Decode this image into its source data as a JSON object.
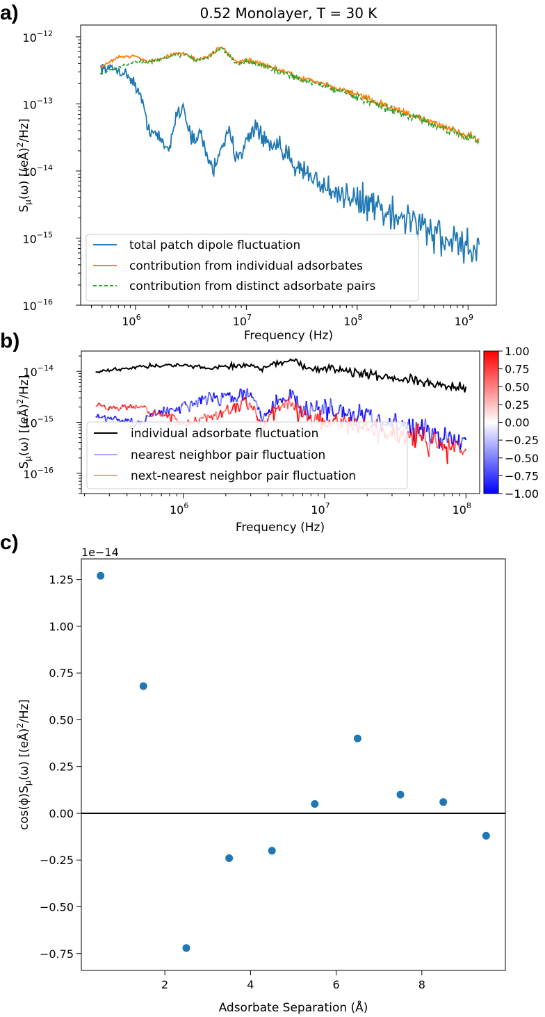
{
  "chart_data": [
    {
      "panel": "a)",
      "type": "line",
      "title": "0.52 Monolayer, T = 30 K",
      "xlabel": "Frequency (Hz)",
      "ylabel": "S_μ(ω) [(eÅ)²/Hz]",
      "xscale": "log",
      "yscale": "log",
      "xlim": [
        320000.0,
        1800000000.0
      ],
      "ylim": [
        1e-16,
        1.5e-12
      ],
      "xticks": [
        {
          "exp": "6"
        },
        {
          "exp": "7"
        },
        {
          "exp": "8"
        },
        {
          "exp": "9"
        }
      ],
      "yticks": [
        {
          "exp": "-16"
        },
        {
          "exp": "-15"
        },
        {
          "exp": "-14"
        },
        {
          "exp": "-13"
        },
        {
          "exp": "-12"
        }
      ],
      "legend_loc": "lower-left",
      "series": [
        {
          "name": "total patch dipole fluctuation",
          "color": "#1f77b4",
          "style": "solid",
          "noise": 0.55,
          "x": [
            480000.0,
            700000.0,
            900000.0,
            1100000.0,
            1300000.0,
            1600000.0,
            2000000.0,
            2300000.0,
            2700000.0,
            3000000.0,
            3400000.0,
            3800000.0,
            4300000.0,
            5000000.0,
            6000000.0,
            7000000.0,
            8000000.0,
            10000000.0,
            12000000.0,
            15000000.0,
            20000000.0,
            30000000.0,
            50000000.0,
            100000000.0,
            200000000.0,
            400000000.0,
            700000000.0,
            1260000000.0
          ],
          "y": [
            3.5e-13,
            3.2e-13,
            2.5e-13,
            1.4e-13,
            4.5e-14,
            3.2e-14,
            2e-14,
            6.5e-14,
            9.5e-14,
            4.5e-14,
            2.5e-14,
            3.8e-14,
            2e-14,
            1e-14,
            2.5e-14,
            3.5e-14,
            1.8e-14,
            2.5e-14,
            5e-14,
            2.5e-14,
            2e-14,
            1.2e-14,
            7e-15,
            4e-15,
            2.5e-15,
            1.5e-15,
            1e-15,
            8e-16
          ]
        },
        {
          "name": "contribution from individual adsorbates",
          "color": "#ff7f0e",
          "style": "solid",
          "noise": 0.12,
          "x": [
            480000.0,
            700000.0,
            1000000.0,
            1300000.0,
            1600000.0,
            2200000.0,
            2800000.0,
            3500000.0,
            4500000.0,
            6000000.0,
            8000000.0,
            10000000.0,
            15000000.0,
            20000000.0,
            30000000.0,
            50000000.0,
            100000000.0,
            200000000.0,
            400000000.0,
            700000000.0,
            1260000000.0
          ],
          "y": [
            3.5e-13,
            5e-13,
            5.2e-13,
            4.2e-13,
            4.6e-13,
            5.5e-13,
            5.6e-13,
            4.6e-13,
            5e-13,
            7.2e-13,
            4.2e-13,
            4.5e-13,
            3.8e-13,
            3.2e-13,
            2.5e-13,
            2e-13,
            1.4e-13,
            9e-14,
            6e-14,
            4.3e-14,
            3e-14
          ]
        },
        {
          "name": "contribution from distinct adsorbate pairs",
          "color": "#2ca02c",
          "style": "dashed",
          "noise": 0.12,
          "x": [
            480000.0,
            700000.0,
            1000000.0,
            1300000.0,
            1600000.0,
            2200000.0,
            2800000.0,
            3500000.0,
            4500000.0,
            6000000.0,
            8000000.0,
            10000000.0,
            15000000.0,
            20000000.0,
            30000000.0,
            50000000.0,
            100000000.0,
            200000000.0,
            400000000.0,
            700000000.0,
            1260000000.0
          ],
          "y": [
            2.8e-13,
            3.5e-13,
            4.3e-13,
            4.2e-13,
            4.5e-13,
            5.3e-13,
            5.4e-13,
            4.5e-13,
            4.9e-13,
            7e-13,
            4e-13,
            4.3e-13,
            3.6e-13,
            3e-13,
            2.4e-13,
            1.9e-13,
            1.3e-13,
            8.5e-14,
            5.7e-14,
            4e-14,
            2.8e-14
          ]
        }
      ]
    },
    {
      "panel": "b)",
      "type": "line",
      "title": "",
      "xlabel": "Frequency (Hz)",
      "ylabel": "S_μ(ω) [(eÅ)²/Hz]",
      "xscale": "log",
      "yscale": "log",
      "xlim": [
        190000.0,
        125000000.0
      ],
      "ylim": [
        4e-17,
        2.5e-14
      ],
      "xticks": [
        {
          "exp": "6"
        },
        {
          "exp": "7"
        },
        {
          "exp": "8"
        }
      ],
      "yticks": [
        {
          "exp": "-16"
        },
        {
          "exp": "-15"
        },
        {
          "exp": "-14"
        }
      ],
      "legend_loc": "lower-left",
      "colorbar": {
        "cmap": "bwr",
        "min": -1.0,
        "max": 1.0,
        "ticks": [
          "1.00",
          "0.75",
          "0.50",
          "0.25",
          "0.00",
          "−0.25",
          "−0.50",
          "−0.75",
          "−1.00"
        ]
      },
      "series": [
        {
          "name": "individual adsorbate fluctuation",
          "color": "#000000",
          "style": "solid",
          "noise": 0.2,
          "x": [
            240000.0,
            500000.0,
            800000.0,
            1000000.0,
            1300000.0,
            1600000.0,
            2000000.0,
            2500000.0,
            3000000.0,
            3500000.0,
            4500000.0,
            6000000.0,
            7000000.0,
            10000000.0,
            15000000.0,
            20000000.0,
            30000000.0,
            50000000.0,
            70000000.0,
            100000000.0
          ],
          "y": [
            9.8e-15,
            1.25e-14,
            1.32e-14,
            1.3e-14,
            1.2e-14,
            1.15e-14,
            1.3e-14,
            1.25e-14,
            1.35e-14,
            1.15e-14,
            1.4e-14,
            1.75e-14,
            1.2e-14,
            1.15e-14,
            1.1e-14,
            9e-15,
            8e-15,
            6.5e-15,
            5.5e-15,
            5e-15
          ]
        },
        {
          "name": "nearest neighbor pair fluctuation",
          "color": "#0000ff",
          "style": "solid",
          "noise": 0.5,
          "x": [
            240000.0,
            480000.0,
            700000.0,
            900000.0,
            1100000.0,
            1400000.0,
            1800000.0,
            2200000.0,
            2800000.0,
            3200000.0,
            3700000.0,
            4200000.0,
            5000000.0,
            6000000.0,
            7000000.0,
            8000000.0,
            10000000.0,
            15000000.0,
            20000000.0,
            30000000.0,
            50000000.0,
            70000000.0,
            100000000.0
          ],
          "y": [
            1.3e-15,
            9.5e-16,
            1.7e-15,
            1.7e-15,
            2.1e-15,
            2.9e-15,
            3e-15,
            3e-15,
            3.7e-15,
            2.5e-15,
            1.1e-15,
            2.2e-15,
            2.8e-15,
            3.5e-15,
            1.8e-15,
            2.2e-15,
            2e-15,
            1.7e-15,
            1.5e-15,
            1.1e-15,
            8e-16,
            6e-16,
            4.5e-16
          ]
        },
        {
          "name": "next-nearest neighbor pair fluctuation",
          "color": "#ff0000",
          "style": "solid",
          "noise": 0.5,
          "x": [
            240000.0,
            480000.0,
            700000.0,
            900000.0,
            1100000.0,
            1400000.0,
            1800000.0,
            2200000.0,
            2800000.0,
            3200000.0,
            3700000.0,
            4200000.0,
            5000000.0,
            6000000.0,
            7000000.0,
            8000000.0,
            10000000.0,
            15000000.0,
            20000000.0,
            30000000.0,
            50000000.0,
            70000000.0,
            100000000.0
          ],
          "y": [
            2.1e-15,
            1.85e-15,
            1.4e-15,
            9.8e-16,
            1e-15,
            1.2e-15,
            1.4e-15,
            1.9e-15,
            2.4e-15,
            1.8e-15,
            7.5e-16,
            1.5e-15,
            1.9e-15,
            2.8e-15,
            1.3e-15,
            1.3e-15,
            1.2e-15,
            1e-15,
            9e-16,
            7e-16,
            5.5e-16,
            4e-16,
            3e-16
          ]
        }
      ]
    },
    {
      "panel": "c)",
      "type": "scatter",
      "title": "",
      "xlabel": "Adsorbate Separation (Å)",
      "ylabel": "cos(φ)S_μ(ω) [(eÅ)²/Hz]",
      "offset_text": "1e−14",
      "xlim": [
        0.05,
        9.95
      ],
      "ylim": [
        -0.84,
        1.36
      ],
      "xticks": [
        "2",
        "4",
        "6",
        "8"
      ],
      "xtick_values": [
        2,
        4,
        6,
        8
      ],
      "yticks": [
        "1.25",
        "1.00",
        "0.75",
        "0.50",
        "0.25",
        "0.00",
        "−0.25",
        "−0.50",
        "−0.75"
      ],
      "ytick_values": [
        1.25,
        1.0,
        0.75,
        0.5,
        0.25,
        0.0,
        -0.25,
        -0.5,
        -0.75
      ],
      "color": "#1f77b4",
      "x": [
        0.5,
        1.5,
        2.5,
        3.5,
        4.5,
        5.5,
        6.5,
        7.5,
        8.5,
        9.5
      ],
      "y": [
        1.27,
        0.68,
        -0.72,
        -0.24,
        -0.2,
        0.05,
        0.4,
        0.1,
        0.06,
        -0.12
      ]
    }
  ]
}
